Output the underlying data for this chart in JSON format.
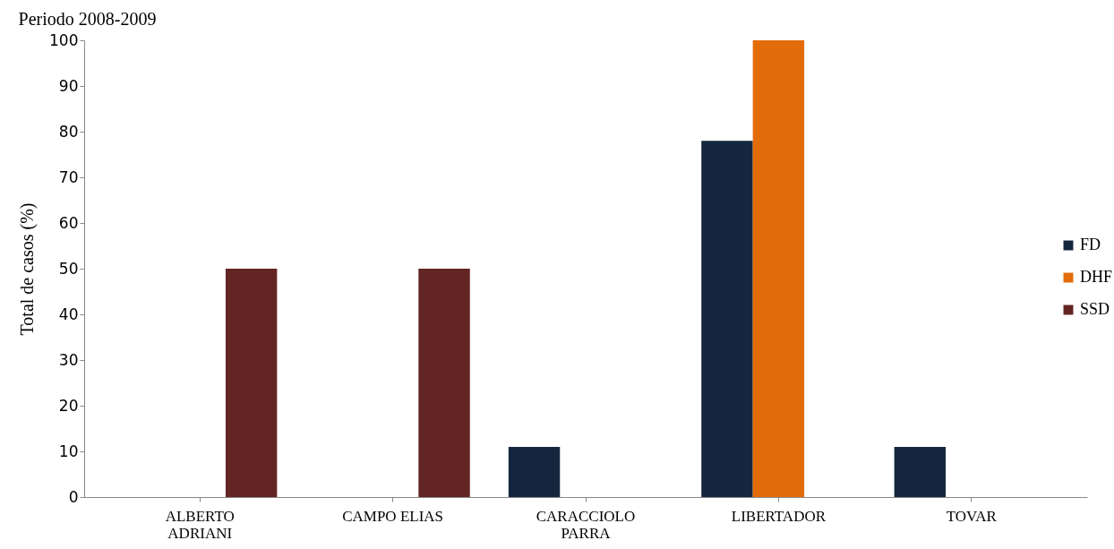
{
  "chart_data": {
    "type": "bar",
    "title": "Periodo 2008-2009",
    "ylabel": "Total de casos (%)",
    "categories": [
      "ALBERTO ADRIANI",
      "CAMPO ELIAS",
      "CARACCIOLO PARRA",
      "LIBERTADOR",
      "TOVAR"
    ],
    "series": [
      {
        "name": "FD",
        "color": "#14273f",
        "values": [
          0,
          0,
          11,
          78,
          11
        ]
      },
      {
        "name": "DHF",
        "color": "#e36c0a",
        "values": [
          0,
          0,
          0,
          100,
          0
        ]
      },
      {
        "name": "SSD",
        "color": "#632523",
        "values": [
          50,
          50,
          0,
          0,
          0
        ]
      }
    ],
    "ylim": [
      0,
      100
    ],
    "yticks": [
      0,
      10,
      20,
      30,
      40,
      50,
      60,
      70,
      80,
      90,
      100
    ],
    "grid": false,
    "legend": "right"
  }
}
